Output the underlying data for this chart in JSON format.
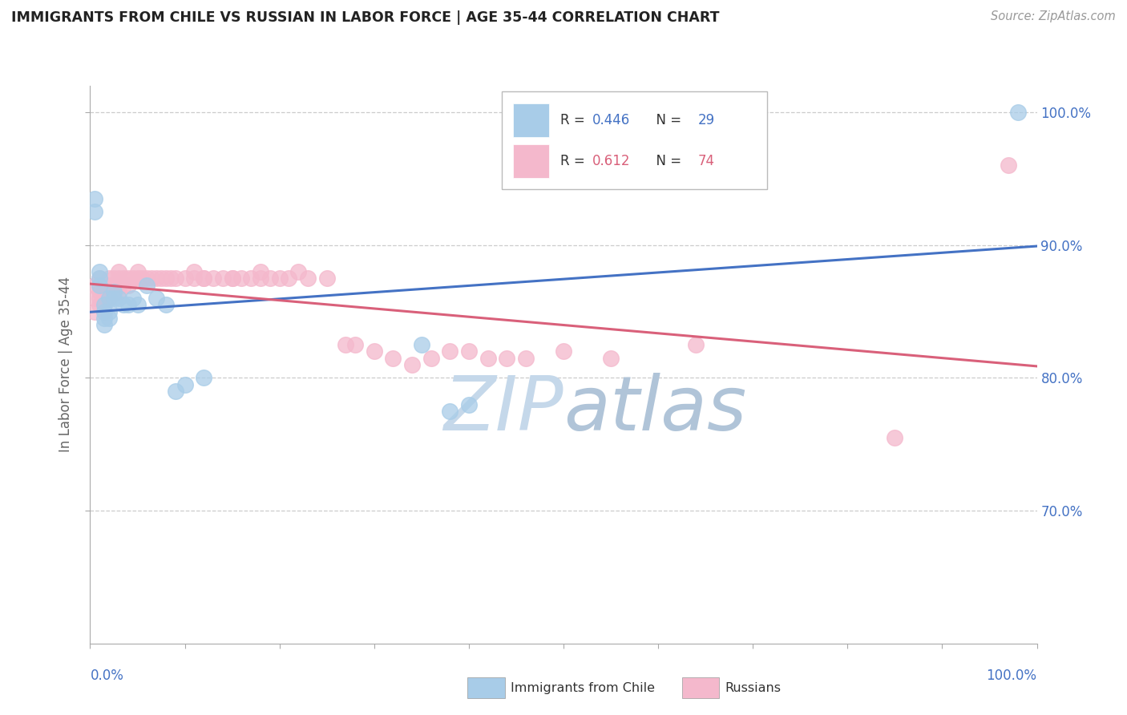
{
  "title": "IMMIGRANTS FROM CHILE VS RUSSIAN IN LABOR FORCE | AGE 35-44 CORRELATION CHART",
  "source": "Source: ZipAtlas.com",
  "ylabel": "In Labor Force | Age 35-44",
  "legend_chile_label": "Immigrants from Chile",
  "legend_russian_label": "Russians",
  "r_chile": "0.446",
  "n_chile": "29",
  "r_russian": "0.612",
  "n_russian": "74",
  "chile_color": "#a8cce8",
  "russian_color": "#f4b8cc",
  "chile_line_color": "#4472c4",
  "russian_line_color": "#d9607a",
  "title_color": "#222222",
  "source_color": "#999999",
  "axis_label_color": "#4472c4",
  "grid_color": "#cccccc",
  "watermark_color_zip": "#c8d8e8",
  "watermark_color_atlas": "#b0c8e0",
  "background_color": "#ffffff",
  "xlim": [
    0.0,
    1.0
  ],
  "ylim": [
    0.6,
    1.02
  ],
  "yticks": [
    0.7,
    0.8,
    0.9,
    1.0
  ],
  "ytick_labels": [
    "70.0%",
    "80.0%",
    "90.0%",
    "100.0%"
  ],
  "chile_x": [
    0.005,
    0.005,
    0.01,
    0.01,
    0.01,
    0.015,
    0.015,
    0.015,
    0.015,
    0.02,
    0.02,
    0.02,
    0.025,
    0.025,
    0.03,
    0.035,
    0.04,
    0.045,
    0.05,
    0.06,
    0.07,
    0.08,
    0.09,
    0.1,
    0.12,
    0.35,
    0.38,
    0.4,
    0.98
  ],
  "chile_y": [
    0.935,
    0.925,
    0.88,
    0.875,
    0.87,
    0.855,
    0.85,
    0.845,
    0.84,
    0.86,
    0.85,
    0.845,
    0.865,
    0.86,
    0.86,
    0.855,
    0.855,
    0.86,
    0.855,
    0.87,
    0.86,
    0.855,
    0.79,
    0.795,
    0.8,
    0.825,
    0.775,
    0.78,
    1.0
  ],
  "russian_x": [
    0.005,
    0.005,
    0.005,
    0.01,
    0.01,
    0.01,
    0.01,
    0.01,
    0.015,
    0.015,
    0.015,
    0.015,
    0.015,
    0.02,
    0.02,
    0.02,
    0.02,
    0.025,
    0.025,
    0.025,
    0.03,
    0.03,
    0.03,
    0.03,
    0.035,
    0.035,
    0.04,
    0.04,
    0.045,
    0.05,
    0.05,
    0.055,
    0.06,
    0.065,
    0.07,
    0.075,
    0.08,
    0.085,
    0.09,
    0.1,
    0.11,
    0.11,
    0.12,
    0.12,
    0.13,
    0.14,
    0.15,
    0.15,
    0.16,
    0.17,
    0.18,
    0.18,
    0.19,
    0.2,
    0.21,
    0.22,
    0.23,
    0.25,
    0.27,
    0.28,
    0.3,
    0.32,
    0.34,
    0.36,
    0.38,
    0.4,
    0.42,
    0.44,
    0.46,
    0.5,
    0.55,
    0.64,
    0.85,
    0.97
  ],
  "russian_y": [
    0.87,
    0.86,
    0.85,
    0.875,
    0.87,
    0.865,
    0.86,
    0.855,
    0.87,
    0.865,
    0.86,
    0.855,
    0.85,
    0.875,
    0.87,
    0.865,
    0.86,
    0.875,
    0.87,
    0.865,
    0.88,
    0.875,
    0.87,
    0.865,
    0.875,
    0.87,
    0.875,
    0.87,
    0.875,
    0.88,
    0.875,
    0.875,
    0.875,
    0.875,
    0.875,
    0.875,
    0.875,
    0.875,
    0.875,
    0.875,
    0.88,
    0.875,
    0.875,
    0.875,
    0.875,
    0.875,
    0.875,
    0.875,
    0.875,
    0.875,
    0.875,
    0.88,
    0.875,
    0.875,
    0.875,
    0.88,
    0.875,
    0.875,
    0.825,
    0.825,
    0.82,
    0.815,
    0.81,
    0.815,
    0.82,
    0.82,
    0.815,
    0.815,
    0.815,
    0.82,
    0.815,
    0.825,
    0.755,
    0.96
  ]
}
